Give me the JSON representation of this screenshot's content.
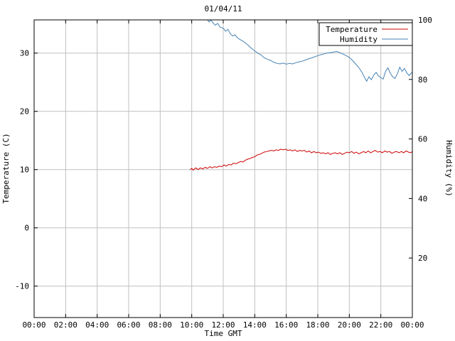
{
  "chart_data": {
    "type": "line",
    "title": "01/04/11",
    "xlabel": "Time GMT",
    "ylabel_left": "Temperature (C)",
    "ylabel_right": "Humidity (%)",
    "grid": true,
    "grid_color": "#c0c0c0",
    "legend_position": "top-right",
    "x_range_hours": [
      0,
      24
    ],
    "x_tick_hours": [
      0,
      2,
      4,
      6,
      8,
      10,
      12,
      14,
      16,
      18,
      20,
      22,
      24
    ],
    "x_ticks": [
      "00:00",
      "02:00",
      "04:00",
      "06:00",
      "08:00",
      "10:00",
      "12:00",
      "14:00",
      "16:00",
      "18:00",
      "20:00",
      "22:00",
      "00:00"
    ],
    "y_left_range": [
      -15.4,
      35.7
    ],
    "y_left_ticks": [
      -10,
      0,
      10,
      20,
      30
    ],
    "y_right_range": [
      0,
      100
    ],
    "y_right_ticks": [
      20,
      40,
      60,
      80,
      100
    ],
    "series": [
      {
        "name": "Temperature",
        "axis": "left",
        "color": "#cc0000",
        "points": [
          [
            9.9,
            10.0
          ],
          [
            10.0,
            10.2
          ],
          [
            10.1,
            9.9
          ],
          [
            10.25,
            10.3
          ],
          [
            10.4,
            10.0
          ],
          [
            10.55,
            10.3
          ],
          [
            10.7,
            10.1
          ],
          [
            10.85,
            10.4
          ],
          [
            11.0,
            10.2
          ],
          [
            11.15,
            10.5
          ],
          [
            11.3,
            10.3
          ],
          [
            11.45,
            10.5
          ],
          [
            11.6,
            10.4
          ],
          [
            11.75,
            10.6
          ],
          [
            11.9,
            10.5
          ],
          [
            12.05,
            10.8
          ],
          [
            12.2,
            10.6
          ],
          [
            12.35,
            10.9
          ],
          [
            12.5,
            10.8
          ],
          [
            12.65,
            11.1
          ],
          [
            12.8,
            11.0
          ],
          [
            12.95,
            11.2
          ],
          [
            13.1,
            11.4
          ],
          [
            13.25,
            11.3
          ],
          [
            13.4,
            11.6
          ],
          [
            13.55,
            11.8
          ],
          [
            13.7,
            11.9
          ],
          [
            13.85,
            12.1
          ],
          [
            14.0,
            12.2
          ],
          [
            14.15,
            12.5
          ],
          [
            14.3,
            12.6
          ],
          [
            14.45,
            12.8
          ],
          [
            14.6,
            13.0
          ],
          [
            14.75,
            13.1
          ],
          [
            14.9,
            13.2
          ],
          [
            15.05,
            13.3
          ],
          [
            15.2,
            13.2
          ],
          [
            15.35,
            13.4
          ],
          [
            15.5,
            13.3
          ],
          [
            15.65,
            13.5
          ],
          [
            15.8,
            13.4
          ],
          [
            15.95,
            13.5
          ],
          [
            16.1,
            13.3
          ],
          [
            16.25,
            13.4
          ],
          [
            16.4,
            13.2
          ],
          [
            16.55,
            13.4
          ],
          [
            16.7,
            13.1
          ],
          [
            16.85,
            13.3
          ],
          [
            17.0,
            13.2
          ],
          [
            17.15,
            13.3
          ],
          [
            17.3,
            13.0
          ],
          [
            17.45,
            13.2
          ],
          [
            17.6,
            12.9
          ],
          [
            17.75,
            13.1
          ],
          [
            17.9,
            12.9
          ],
          [
            18.05,
            13.0
          ],
          [
            18.2,
            12.8
          ],
          [
            18.35,
            12.9
          ],
          [
            18.5,
            12.7
          ],
          [
            18.65,
            12.9
          ],
          [
            18.8,
            12.6
          ],
          [
            18.95,
            12.8
          ],
          [
            19.1,
            12.9
          ],
          [
            19.25,
            12.7
          ],
          [
            19.4,
            12.9
          ],
          [
            19.55,
            12.6
          ],
          [
            19.7,
            12.8
          ],
          [
            19.85,
            13.0
          ],
          [
            20.0,
            12.9
          ],
          [
            20.15,
            13.1
          ],
          [
            20.3,
            12.8
          ],
          [
            20.45,
            13.0
          ],
          [
            20.6,
            12.7
          ],
          [
            20.75,
            12.9
          ],
          [
            20.9,
            13.1
          ],
          [
            21.05,
            12.9
          ],
          [
            21.2,
            13.2
          ],
          [
            21.35,
            12.9
          ],
          [
            21.5,
            13.1
          ],
          [
            21.65,
            13.3
          ],
          [
            21.8,
            13.0
          ],
          [
            21.95,
            13.1
          ],
          [
            22.1,
            12.9
          ],
          [
            22.25,
            13.2
          ],
          [
            22.4,
            13.0
          ],
          [
            22.55,
            13.1
          ],
          [
            22.7,
            12.8
          ],
          [
            22.85,
            13.0
          ],
          [
            23.0,
            13.1
          ],
          [
            23.15,
            12.9
          ],
          [
            23.3,
            13.1
          ],
          [
            23.45,
            12.9
          ],
          [
            23.6,
            13.2
          ],
          [
            23.75,
            13.0
          ],
          [
            23.9,
            12.9
          ],
          [
            24.0,
            13.1
          ]
        ]
      },
      {
        "name": "Humidity",
        "axis": "right",
        "color": "#4682b4",
        "points": [
          [
            11.0,
            100
          ],
          [
            11.1,
            99.3
          ],
          [
            11.2,
            100
          ],
          [
            11.35,
            99.0
          ],
          [
            11.5,
            98.2
          ],
          [
            11.65,
            98.8
          ],
          [
            11.8,
            97.6
          ],
          [
            12.0,
            97.2
          ],
          [
            12.15,
            96.2
          ],
          [
            12.3,
            96.8
          ],
          [
            12.45,
            95.3
          ],
          [
            12.6,
            94.6
          ],
          [
            12.75,
            95.0
          ],
          [
            12.9,
            94.0
          ],
          [
            13.0,
            93.6
          ],
          [
            13.2,
            93.0
          ],
          [
            13.4,
            92.3
          ],
          [
            13.6,
            91.4
          ],
          [
            13.8,
            90.4
          ],
          [
            14.0,
            89.6
          ],
          [
            14.2,
            88.8
          ],
          [
            14.4,
            88.2
          ],
          [
            14.6,
            87.3
          ],
          [
            14.8,
            86.8
          ],
          [
            15.0,
            86.4
          ],
          [
            15.2,
            85.8
          ],
          [
            15.4,
            85.4
          ],
          [
            15.6,
            85.2
          ],
          [
            15.8,
            85.5
          ],
          [
            16.0,
            85.1
          ],
          [
            16.2,
            85.4
          ],
          [
            16.4,
            85.2
          ],
          [
            16.6,
            85.6
          ],
          [
            16.8,
            85.9
          ],
          [
            17.0,
            86.1
          ],
          [
            17.2,
            86.5
          ],
          [
            17.4,
            86.9
          ],
          [
            17.6,
            87.2
          ],
          [
            17.8,
            87.6
          ],
          [
            18.0,
            88.0
          ],
          [
            18.2,
            88.3
          ],
          [
            18.4,
            88.6
          ],
          [
            18.6,
            88.9
          ],
          [
            18.8,
            89.0
          ],
          [
            19.0,
            89.2
          ],
          [
            19.2,
            89.4
          ],
          [
            19.4,
            89.0
          ],
          [
            19.6,
            88.5
          ],
          [
            19.8,
            88.0
          ],
          [
            20.0,
            87.4
          ],
          [
            20.2,
            86.4
          ],
          [
            20.4,
            85.2
          ],
          [
            20.6,
            84.0
          ],
          [
            20.8,
            82.4
          ],
          [
            21.0,
            80.3
          ],
          [
            21.1,
            79.4
          ],
          [
            21.25,
            80.9
          ],
          [
            21.4,
            79.9
          ],
          [
            21.55,
            81.4
          ],
          [
            21.7,
            82.4
          ],
          [
            21.85,
            81.2
          ],
          [
            22.0,
            80.6
          ],
          [
            22.15,
            80.1
          ],
          [
            22.3,
            82.7
          ],
          [
            22.45,
            83.9
          ],
          [
            22.6,
            82.1
          ],
          [
            22.75,
            80.9
          ],
          [
            22.9,
            80.3
          ],
          [
            23.05,
            81.9
          ],
          [
            23.2,
            84.1
          ],
          [
            23.35,
            82.7
          ],
          [
            23.5,
            83.7
          ],
          [
            23.65,
            82.2
          ],
          [
            23.8,
            81.3
          ],
          [
            23.9,
            82.0
          ],
          [
            24.0,
            82.4
          ]
        ]
      }
    ]
  }
}
